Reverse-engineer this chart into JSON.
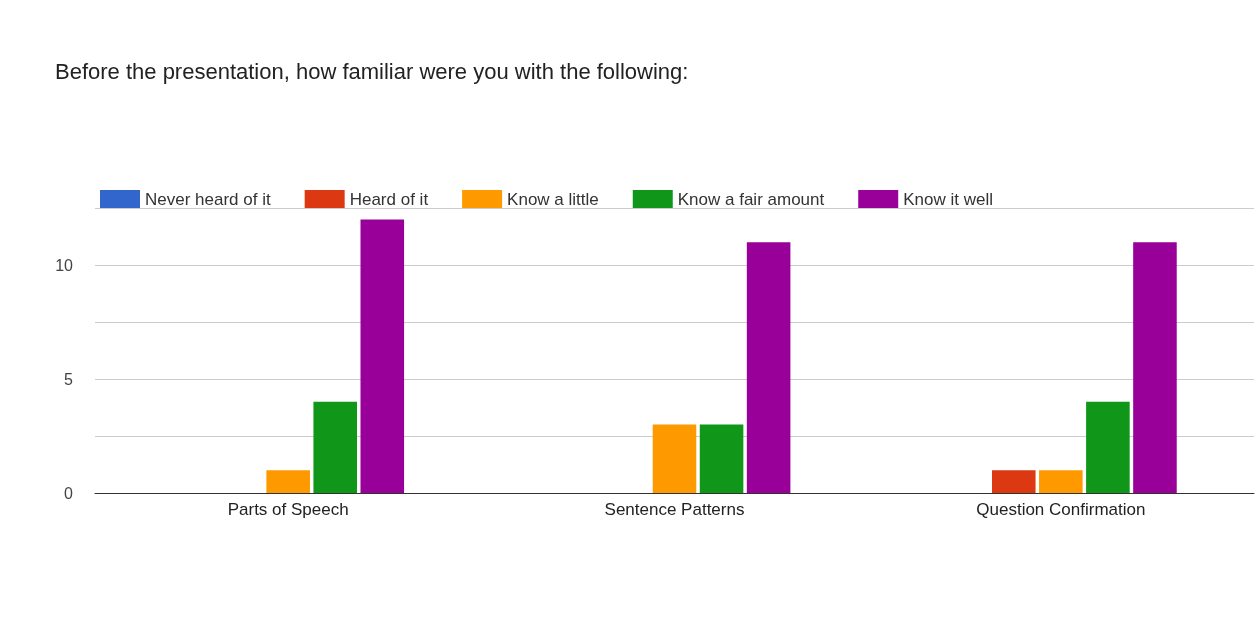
{
  "chart_data": {
    "type": "bar",
    "title": "Before the presentation, how familiar were you with the following:",
    "categories": [
      "Parts of Speech",
      "Sentence Patterns",
      "Question Confirmation"
    ],
    "series": [
      {
        "name": "Never heard of it",
        "color": "#3366cc",
        "values": [
          0,
          0,
          0
        ]
      },
      {
        "name": "Heard of it",
        "color": "#dc3912",
        "values": [
          0,
          0,
          1
        ]
      },
      {
        "name": "Know a little",
        "color": "#ff9900",
        "values": [
          1,
          3,
          1
        ]
      },
      {
        "name": "Know a fair amount",
        "color": "#109618",
        "values": [
          4,
          3,
          4
        ]
      },
      {
        "name": "Know it well",
        "color": "#990099",
        "values": [
          12,
          11,
          11
        ]
      }
    ],
    "ylim": [
      0,
      12.5
    ],
    "yticks": [
      0,
      {
        "value": 2.5,
        "label": null
      },
      5,
      {
        "value": 7.5,
        "label": null
      },
      10,
      {
        "value": 12.5,
        "label": null
      }
    ],
    "grid": "y",
    "legend": "top left"
  }
}
